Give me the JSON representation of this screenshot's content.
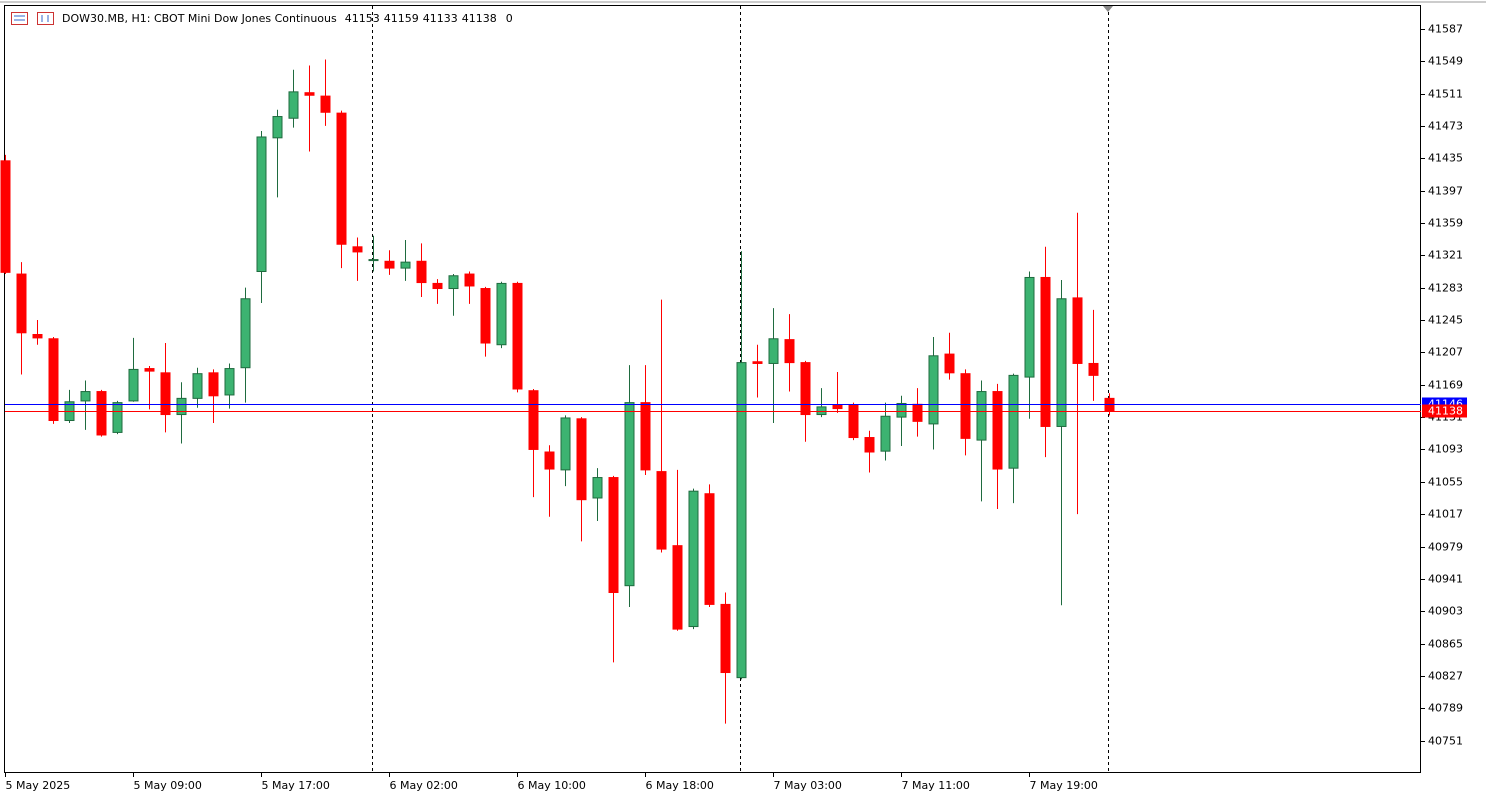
{
  "chart_data": {
    "type": "candlestick",
    "title": "DOW30.MB, H1:  CBOT Mini Dow Jones Continuous",
    "header_values": [
      41153,
      41159,
      41133,
      41138,
      0
    ],
    "up_color": "#3cb371",
    "down_color": "#ff0000",
    "categories": [
      "5 May 2025",
      null,
      null,
      null,
      null,
      null,
      null,
      null,
      "5 May 09:00",
      null,
      null,
      null,
      null,
      null,
      null,
      null,
      "5 May 17:00",
      null,
      null,
      null,
      null,
      null,
      null,
      null,
      "6 May 02:00",
      null,
      null,
      null,
      null,
      null,
      null,
      null,
      "6 May 10:00",
      null,
      null,
      null,
      null,
      null,
      null,
      null,
      "6 May 18:00",
      null,
      null,
      null,
      null,
      null,
      null,
      null,
      "7 May 03:00",
      null,
      null,
      null,
      null,
      null,
      null,
      null,
      "7 May 11:00",
      null,
      null,
      null,
      null,
      null,
      null,
      null,
      "7 May 19:00",
      null,
      null,
      null,
      null,
      null
    ],
    "open": [
      41432,
      41299,
      41228,
      41223,
      41127,
      41150,
      41161,
      41113,
      41150,
      41188,
      41183,
      41134,
      41153,
      41183,
      41157,
      41189,
      41302,
      41459,
      41482,
      41512,
      41508,
      41488,
      41331,
      41315,
      41314,
      41306,
      41314,
      41288,
      41282,
      41299,
      41282,
      41216,
      41288,
      41162,
      41090,
      41069,
      41129,
      41036,
      41060,
      40933,
      41148,
      41067,
      40980,
      40885,
      41041,
      40911,
      40825,
      41196,
      41194,
      41222,
      41195,
      41134,
      41145,
      41145,
      41107,
      41091,
      41131,
      41146,
      41123,
      41205,
      41182,
      41104,
      41161,
      41071,
      41178,
      41295,
      41120,
      41271,
      41194,
      41153
    ],
    "high": [
      41439,
      41313,
      41245,
      41225,
      41163,
      41174,
      41163,
      41150,
      41224,
      41191,
      41218,
      41172,
      41189,
      41187,
      41194,
      41283,
      41467,
      41492,
      41539,
      41544,
      41551,
      41491,
      41342,
      41344,
      41327,
      41339,
      41335,
      41293,
      41299,
      41302,
      41284,
      41290,
      41290,
      41164,
      41098,
      41133,
      41131,
      41071,
      41062,
      41192,
      41192,
      41269,
      41069,
      41047,
      41052,
      40925,
      41326,
      41216,
      41259,
      41252,
      41197,
      41165,
      41184,
      41148,
      41115,
      41148,
      41156,
      41165,
      41225,
      41230,
      41187,
      41174,
      41170,
      41182,
      41302,
      41331,
      41292,
      41371,
      41257,
      41159
    ],
    "low": [
      41299,
      41181,
      41216,
      41123,
      41124,
      41116,
      41108,
      41111,
      41149,
      41140,
      41113,
      41100,
      41142,
      41124,
      41141,
      41148,
      41265,
      41389,
      41471,
      41443,
      41473,
      41306,
      41291,
      41302,
      41298,
      41291,
      41272,
      41264,
      41250,
      41264,
      41202,
      41212,
      41160,
      41037,
      41014,
      41050,
      40985,
      41009,
      40843,
      40908,
      41063,
      40972,
      40880,
      40882,
      40908,
      40771,
      40823,
      41154,
      41124,
      41161,
      41102,
      41131,
      41136,
      41104,
      41066,
      41080,
      41097,
      41108,
      41093,
      41175,
      41086,
      41032,
      41023,
      41030,
      41129,
      41084,
      40910,
      41017,
      41150,
      41133
    ],
    "close": [
      41301,
      41230,
      41224,
      41127,
      41149,
      41161,
      41110,
      41148,
      41187,
      41185,
      41134,
      41153,
      41182,
      41156,
      41188,
      41270,
      41460,
      41484,
      41513,
      41509,
      41489,
      41334,
      41325,
      41316,
      41306,
      41313,
      41289,
      41282,
      41297,
      41285,
      41218,
      41288,
      41164,
      41093,
      41070,
      41130,
      41034,
      41060,
      40925,
      41148,
      41069,
      40976,
      40882,
      41044,
      40911,
      40831,
      41195,
      41194,
      41223,
      41195,
      41134,
      41143,
      41141,
      41107,
      41090,
      41132,
      41147,
      41126,
      41203,
      41183,
      41106,
      41161,
      41070,
      41180,
      41295,
      41120,
      41270,
      41194,
      41180,
      41138
    ],
    "ylim": [
      40713,
      41615
    ],
    "yticks": [
      41587,
      41549,
      41511,
      41473,
      41435,
      41397,
      41359,
      41321,
      41283,
      41245,
      41207,
      41169,
      41131,
      41093,
      41055,
      41017,
      40979,
      40941,
      40903,
      40865,
      40827,
      40789,
      40751
    ],
    "price_lines": [
      {
        "value": 41146,
        "color": "#0000ff"
      },
      {
        "value": 41138,
        "color": "#ff0000"
      }
    ]
  }
}
